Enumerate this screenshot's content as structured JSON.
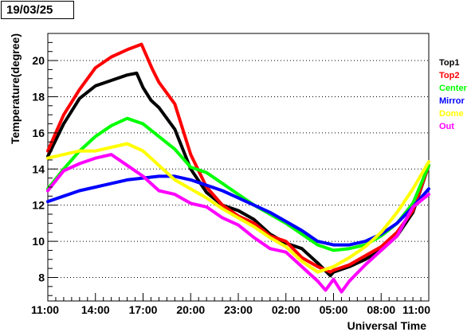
{
  "date_label": "19/03/25",
  "chart_data": {
    "type": "line",
    "xlabel": "Universal Time",
    "ylabel": "Temperature(degree)",
    "x_unit": "hours since 11:00 (axis labels are clock times)",
    "x_tick_labels": [
      "11:00",
      "14:00",
      "17:00",
      "20:00",
      "23:00",
      "02:00",
      "05:00",
      "08:00",
      "11:00"
    ],
    "x_tick_values": [
      0,
      3,
      6,
      9,
      12,
      15,
      18,
      21,
      24
    ],
    "xlim": [
      0,
      24
    ],
    "ylim": [
      6.7,
      21.5
    ],
    "y_ticks": [
      8,
      10,
      12,
      14,
      16,
      18,
      20
    ],
    "grid": "horizontal dotted",
    "legend_position": "right",
    "series": [
      {
        "name": "Top1",
        "color": "#000000",
        "x": [
          0,
          1,
          2,
          3,
          4,
          5,
          5.6,
          6,
          6.5,
          7,
          8,
          9,
          10,
          11,
          12,
          13,
          14,
          15,
          16,
          17,
          17.8,
          18,
          19,
          20,
          21,
          22,
          23,
          24
        ],
        "y": [
          14.7,
          16.5,
          17.9,
          18.6,
          18.9,
          19.2,
          19.3,
          18.5,
          17.8,
          17.4,
          16.2,
          14.0,
          12.7,
          12.0,
          11.7,
          11.2,
          10.4,
          9.9,
          9.6,
          8.8,
          8.1,
          8.3,
          8.6,
          9.0,
          9.5,
          10.3,
          11.6,
          14.2
        ]
      },
      {
        "name": "Top2",
        "color": "#ff0000",
        "x": [
          0,
          1,
          2,
          3,
          4,
          5,
          5.9,
          6.6,
          7,
          8,
          9,
          10,
          11,
          12,
          13,
          14,
          15,
          16,
          17,
          17.8,
          18,
          19,
          20,
          21,
          22,
          23,
          24
        ],
        "y": [
          15.0,
          17.0,
          18.4,
          19.6,
          20.2,
          20.6,
          20.9,
          19.5,
          18.8,
          17.6,
          14.8,
          13.0,
          12.0,
          11.4,
          11.0,
          10.3,
          10.0,
          9.1,
          8.6,
          8.3,
          8.4,
          8.7,
          9.2,
          9.7,
          10.5,
          11.7,
          14.2
        ]
      },
      {
        "name": "Center",
        "color": "#00ff00",
        "x": [
          0,
          1,
          2,
          3,
          4,
          5,
          6,
          7,
          8,
          9,
          10,
          11,
          12,
          13,
          14,
          15,
          16,
          17,
          18,
          19,
          20,
          21,
          22,
          23,
          24
        ],
        "y": [
          12.9,
          14.0,
          15.0,
          15.8,
          16.4,
          16.8,
          16.5,
          15.8,
          15.1,
          14.1,
          13.8,
          13.2,
          12.6,
          12.0,
          11.5,
          11.0,
          10.4,
          9.8,
          9.5,
          9.6,
          9.8,
          10.3,
          11.0,
          12.1,
          14.2
        ]
      },
      {
        "name": "Mirror",
        "color": "#0000ff",
        "x": [
          0,
          1,
          2,
          3,
          4,
          5,
          6,
          7,
          8,
          9,
          10,
          11,
          12,
          13,
          14,
          15,
          16,
          17,
          18,
          19,
          20,
          21,
          22,
          23,
          24
        ],
        "y": [
          12.2,
          12.5,
          12.8,
          13.0,
          13.2,
          13.4,
          13.5,
          13.6,
          13.6,
          13.4,
          13.1,
          12.8,
          12.4,
          12.0,
          11.6,
          11.1,
          10.6,
          10.0,
          9.8,
          9.8,
          10.0,
          10.4,
          11.0,
          11.9,
          12.9
        ]
      },
      {
        "name": "Dome",
        "color": "#ffff00",
        "x": [
          0,
          1,
          2,
          3,
          4,
          5,
          6,
          7,
          8,
          9,
          10,
          11,
          12,
          13,
          14,
          15,
          16,
          17,
          18,
          19,
          20,
          21,
          22,
          23,
          24
        ],
        "y": [
          14.6,
          14.8,
          15.0,
          15.0,
          15.2,
          15.4,
          15.0,
          14.2,
          13.4,
          12.9,
          12.4,
          11.8,
          11.3,
          10.8,
          10.2,
          9.7,
          8.9,
          8.3,
          8.6,
          9.1,
          9.7,
          10.5,
          11.6,
          12.9,
          14.4
        ]
      },
      {
        "name": "Out",
        "color": "#ff00ff",
        "x": [
          0,
          1,
          2,
          3,
          4,
          5,
          6,
          7,
          8,
          9,
          10,
          11,
          12,
          13,
          14,
          15,
          16,
          17,
          17.5,
          18,
          18.5,
          19,
          20,
          21,
          22,
          23,
          24
        ],
        "y": [
          12.8,
          13.9,
          14.3,
          14.6,
          14.8,
          14.2,
          13.6,
          12.8,
          12.6,
          12.1,
          11.9,
          11.3,
          10.9,
          10.2,
          9.6,
          9.4,
          8.6,
          7.8,
          7.3,
          7.9,
          7.2,
          7.8,
          8.7,
          9.5,
          10.3,
          11.9,
          12.6
        ]
      }
    ]
  }
}
